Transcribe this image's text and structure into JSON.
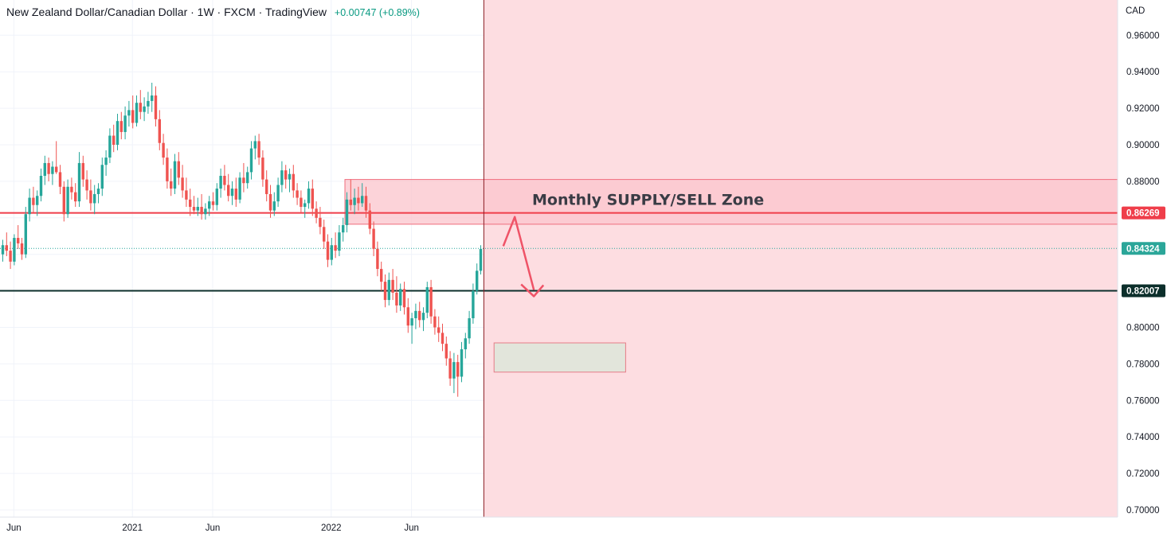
{
  "header": {
    "title": "New Zealand Dollar/Canadian Dollar · 1W · FXCM · TradingView",
    "change": "+0.00747 (+0.89%)"
  },
  "colors": {
    "up": "#26a69a",
    "down": "#ef5350",
    "zone_fill": "#fddde1",
    "supply_fill": "#fbc4cc",
    "supply_border": "#f06d7d",
    "demand_fill": "#dfe6da",
    "resistance_line": "#ef3e4a",
    "support_line": "#0c2f2b",
    "arrow": "#ef5367",
    "grid": "#f0f3fa",
    "axis_text": "#131722"
  },
  "chart_data": {
    "type": "candlestick",
    "currency_label": "CAD",
    "ylim": [
      0.7,
      0.9674
    ],
    "y_ticks": [
      "0.70000",
      "0.72000",
      "0.74000",
      "0.76000",
      "0.78000",
      "0.80000",
      "0.82000",
      "0.84000",
      "0.86000",
      "0.88000",
      "0.90000",
      "0.92000",
      "0.94000",
      "0.96000"
    ],
    "x_ticks": [
      {
        "label": "Jun",
        "week": 3
      },
      {
        "label": "2021",
        "week": 34
      },
      {
        "label": "Jun",
        "week": 55
      },
      {
        "label": "2022",
        "week": 86
      },
      {
        "label": "Jun",
        "week": 107
      }
    ],
    "total_weeks": 300,
    "candles": [
      [
        0.84,
        0.848,
        0.836,
        0.845
      ],
      [
        0.845,
        0.852,
        0.839,
        0.842
      ],
      [
        0.842,
        0.847,
        0.832,
        0.836
      ],
      [
        0.836,
        0.851,
        0.834,
        0.849
      ],
      [
        0.849,
        0.856,
        0.843,
        0.846
      ],
      [
        0.846,
        0.849,
        0.837,
        0.84
      ],
      [
        0.84,
        0.866,
        0.838,
        0.862
      ],
      [
        0.862,
        0.876,
        0.858,
        0.871
      ],
      [
        0.871,
        0.877,
        0.863,
        0.867
      ],
      [
        0.867,
        0.875,
        0.861,
        0.872
      ],
      [
        0.872,
        0.887,
        0.869,
        0.883
      ],
      [
        0.883,
        0.894,
        0.878,
        0.89
      ],
      [
        0.89,
        0.893,
        0.88,
        0.884
      ],
      [
        0.884,
        0.891,
        0.878,
        0.888
      ],
      [
        0.888,
        0.902,
        0.884,
        0.885
      ],
      [
        0.885,
        0.889,
        0.873,
        0.877
      ],
      [
        0.877,
        0.88,
        0.858,
        0.862
      ],
      [
        0.862,
        0.881,
        0.86,
        0.877
      ],
      [
        0.877,
        0.882,
        0.87,
        0.874
      ],
      [
        0.874,
        0.879,
        0.866,
        0.869
      ],
      [
        0.869,
        0.896,
        0.866,
        0.89
      ],
      [
        0.89,
        0.894,
        0.877,
        0.881
      ],
      [
        0.881,
        0.886,
        0.87,
        0.875
      ],
      [
        0.875,
        0.881,
        0.864,
        0.868
      ],
      [
        0.868,
        0.878,
        0.862,
        0.873
      ],
      [
        0.873,
        0.879,
        0.868,
        0.876
      ],
      [
        0.876,
        0.893,
        0.872,
        0.889
      ],
      [
        0.889,
        0.897,
        0.883,
        0.893
      ],
      [
        0.893,
        0.909,
        0.89,
        0.905
      ],
      [
        0.905,
        0.911,
        0.896,
        0.9
      ],
      [
        0.9,
        0.917,
        0.897,
        0.913
      ],
      [
        0.913,
        0.918,
        0.903,
        0.907
      ],
      [
        0.907,
        0.921,
        0.903,
        0.916
      ],
      [
        0.916,
        0.924,
        0.91,
        0.919
      ],
      [
        0.919,
        0.927,
        0.909,
        0.912
      ],
      [
        0.912,
        0.927,
        0.91,
        0.923
      ],
      [
        0.923,
        0.93,
        0.914,
        0.918
      ],
      [
        0.918,
        0.926,
        0.913,
        0.921
      ],
      [
        0.921,
        0.929,
        0.917,
        0.924
      ],
      [
        0.924,
        0.934,
        0.918,
        0.927
      ],
      [
        0.927,
        0.932,
        0.91,
        0.914
      ],
      [
        0.914,
        0.919,
        0.897,
        0.901
      ],
      [
        0.901,
        0.906,
        0.889,
        0.893
      ],
      [
        0.893,
        0.898,
        0.876,
        0.88
      ],
      [
        0.88,
        0.887,
        0.872,
        0.876
      ],
      [
        0.876,
        0.895,
        0.873,
        0.891
      ],
      [
        0.891,
        0.896,
        0.878,
        0.882
      ],
      [
        0.882,
        0.889,
        0.871,
        0.875
      ],
      [
        0.875,
        0.882,
        0.866,
        0.87
      ],
      [
        0.87,
        0.876,
        0.861,
        0.866
      ],
      [
        0.866,
        0.872,
        0.862,
        0.864
      ],
      [
        0.864,
        0.871,
        0.861,
        0.866
      ],
      [
        0.866,
        0.873,
        0.859,
        0.862
      ],
      [
        0.862,
        0.868,
        0.859,
        0.865
      ],
      [
        0.865,
        0.872,
        0.861,
        0.869
      ],
      [
        0.869,
        0.874,
        0.864,
        0.867
      ],
      [
        0.867,
        0.879,
        0.864,
        0.876
      ],
      [
        0.876,
        0.887,
        0.871,
        0.883
      ],
      [
        0.883,
        0.889,
        0.875,
        0.878
      ],
      [
        0.878,
        0.884,
        0.869,
        0.872
      ],
      [
        0.872,
        0.88,
        0.867,
        0.876
      ],
      [
        0.876,
        0.882,
        0.866,
        0.87
      ],
      [
        0.87,
        0.885,
        0.868,
        0.882
      ],
      [
        0.882,
        0.89,
        0.874,
        0.879
      ],
      [
        0.879,
        0.888,
        0.876,
        0.885
      ],
      [
        0.885,
        0.902,
        0.881,
        0.898
      ],
      [
        0.898,
        0.905,
        0.892,
        0.902
      ],
      [
        0.902,
        0.906,
        0.889,
        0.893
      ],
      [
        0.893,
        0.897,
        0.877,
        0.881
      ],
      [
        0.881,
        0.886,
        0.869,
        0.873
      ],
      [
        0.873,
        0.878,
        0.86,
        0.864
      ],
      [
        0.864,
        0.874,
        0.861,
        0.869
      ],
      [
        0.869,
        0.882,
        0.866,
        0.878
      ],
      [
        0.878,
        0.891,
        0.874,
        0.886
      ],
      [
        0.886,
        0.889,
        0.876,
        0.881
      ],
      [
        0.881,
        0.887,
        0.874,
        0.884
      ],
      [
        0.884,
        0.889,
        0.871,
        0.875
      ],
      [
        0.875,
        0.879,
        0.867,
        0.871
      ],
      [
        0.871,
        0.875,
        0.863,
        0.866
      ],
      [
        0.866,
        0.87,
        0.86,
        0.868
      ],
      [
        0.868,
        0.88,
        0.865,
        0.876
      ],
      [
        0.876,
        0.881,
        0.861,
        0.865
      ],
      [
        0.865,
        0.869,
        0.857,
        0.86
      ],
      [
        0.86,
        0.866,
        0.851,
        0.855
      ],
      [
        0.855,
        0.859,
        0.843,
        0.847
      ],
      [
        0.847,
        0.851,
        0.833,
        0.837
      ],
      [
        0.837,
        0.849,
        0.834,
        0.845
      ],
      [
        0.845,
        0.852,
        0.838,
        0.842
      ],
      [
        0.842,
        0.856,
        0.839,
        0.852
      ],
      [
        0.852,
        0.86,
        0.847,
        0.856
      ],
      [
        0.856,
        0.874,
        0.852,
        0.87
      ],
      [
        0.87,
        0.881,
        0.864,
        0.867
      ],
      [
        0.867,
        0.876,
        0.862,
        0.871
      ],
      [
        0.871,
        0.877,
        0.864,
        0.868
      ],
      [
        0.868,
        0.879,
        0.866,
        0.872
      ],
      [
        0.872,
        0.877,
        0.86,
        0.864
      ],
      [
        0.864,
        0.868,
        0.851,
        0.854
      ],
      [
        0.854,
        0.858,
        0.839,
        0.843
      ],
      [
        0.843,
        0.847,
        0.828,
        0.832
      ],
      [
        0.832,
        0.836,
        0.82,
        0.825
      ],
      [
        0.825,
        0.829,
        0.811,
        0.815
      ],
      [
        0.815,
        0.83,
        0.812,
        0.826
      ],
      [
        0.826,
        0.832,
        0.815,
        0.819
      ],
      [
        0.819,
        0.828,
        0.808,
        0.812
      ],
      [
        0.812,
        0.824,
        0.809,
        0.821
      ],
      [
        0.821,
        0.825,
        0.807,
        0.811
      ],
      [
        0.811,
        0.816,
        0.797,
        0.801
      ],
      [
        0.801,
        0.808,
        0.791,
        0.805
      ],
      [
        0.805,
        0.813,
        0.799,
        0.809
      ],
      [
        0.809,
        0.814,
        0.8,
        0.804
      ],
      [
        0.804,
        0.811,
        0.798,
        0.808
      ],
      [
        0.808,
        0.825,
        0.805,
        0.822
      ],
      [
        0.822,
        0.826,
        0.802,
        0.806
      ],
      [
        0.806,
        0.81,
        0.796,
        0.8
      ],
      [
        0.8,
        0.806,
        0.792,
        0.797
      ],
      [
        0.797,
        0.802,
        0.787,
        0.791
      ],
      [
        0.791,
        0.795,
        0.779,
        0.783
      ],
      [
        0.783,
        0.787,
        0.768,
        0.772
      ],
      [
        0.772,
        0.786,
        0.764,
        0.781
      ],
      [
        0.781,
        0.785,
        0.762,
        0.773
      ],
      [
        0.773,
        0.792,
        0.77,
        0.788
      ],
      [
        0.788,
        0.797,
        0.783,
        0.794
      ],
      [
        0.794,
        0.809,
        0.791,
        0.805
      ],
      [
        0.805,
        0.824,
        0.802,
        0.82
      ],
      [
        0.82,
        0.835,
        0.818,
        0.831
      ],
      [
        0.831,
        0.845,
        0.829,
        0.843
      ]
    ],
    "levels": [
      {
        "price": 0.86269,
        "label": "0.86269",
        "style": "resistance"
      },
      {
        "price": 0.84324,
        "label": "0.84324",
        "style": "last_price"
      },
      {
        "price": 0.82007,
        "label": "0.82007",
        "style": "support"
      }
    ],
    "zones": [
      {
        "name": "supply",
        "label": "Monthly SUPPLY/SELL Zone",
        "from_week": 90,
        "to_week": 300,
        "top": 0.881,
        "bottom": 0.8565
      },
      {
        "name": "demand",
        "from_week": 129,
        "to_week": 163,
        "top": 0.7915,
        "bottom": 0.7755
      }
    ],
    "projection": {
      "start_week": 131,
      "path": [
        [
          131,
          0.8445
        ],
        [
          134,
          0.8605
        ],
        [
          139,
          0.8205
        ]
      ]
    }
  }
}
